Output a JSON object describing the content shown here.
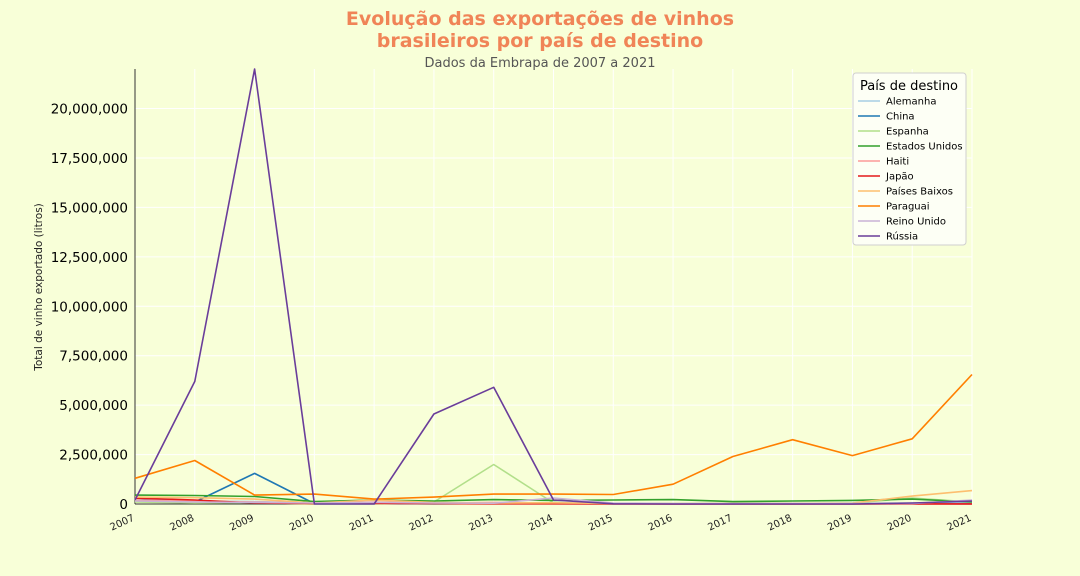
{
  "chart_data": {
    "type": "line",
    "title_lines": [
      "Evolução das exportações de vinhos",
      "brasileiros por país de destino"
    ],
    "subtitle": "Dados da Embrapa de 2007 a 2021",
    "xlabel": "",
    "ylabel": "Total de vinho exportado (litros)",
    "x": [
      "2007",
      "2008",
      "2009",
      "2010",
      "2011",
      "2012",
      "2013",
      "2014",
      "2015",
      "2016",
      "2017",
      "2018",
      "2019",
      "2020",
      "2021"
    ],
    "ylim": [
      0,
      22000000
    ],
    "yticks": [
      0,
      2500000,
      5000000,
      7500000,
      10000000,
      12500000,
      15000000,
      17500000,
      20000000
    ],
    "ytick_labels": [
      "0",
      "2,500,000",
      "5,000,000",
      "7,500,000",
      "10,000,000",
      "12,500,000",
      "15,000,000",
      "17,500,000",
      "20,000,000"
    ],
    "legend": {
      "title": "País de destino",
      "position": "upper right"
    },
    "series": [
      {
        "name": "Alemanha",
        "color": "#a6cee3",
        "values": [
          200000,
          150000,
          120000,
          50000,
          80000,
          60000,
          50000,
          40000,
          30000,
          20000,
          10000,
          20000,
          30000,
          50000,
          60000
        ]
      },
      {
        "name": "China",
        "color": "#1f78b4",
        "values": [
          300000,
          100000,
          1550000,
          20000,
          30000,
          10000,
          20000,
          50000,
          30000,
          10000,
          20000,
          30000,
          10000,
          20000,
          10000
        ]
      },
      {
        "name": "Espanha",
        "color": "#b2df8a",
        "values": [
          100000,
          50000,
          80000,
          0,
          0,
          100000,
          2000000,
          50000,
          20000,
          10000,
          10000,
          5000,
          50000,
          300000,
          100000
        ]
      },
      {
        "name": "Estados Unidos",
        "color": "#33a02c",
        "values": [
          450000,
          430000,
          380000,
          120000,
          200000,
          150000,
          220000,
          180000,
          200000,
          220000,
          120000,
          150000,
          180000,
          250000,
          100000
        ]
      },
      {
        "name": "Haiti",
        "color": "#fb9a99",
        "values": [
          200000,
          150000,
          100000,
          50000,
          100000,
          50000,
          80000,
          20000,
          10000,
          5000,
          5000,
          5000,
          10000,
          5000,
          5000
        ]
      },
      {
        "name": "Japão",
        "color": "#e31a1c",
        "values": [
          300000,
          200000,
          50000,
          20000,
          30000,
          20000,
          10000,
          10000,
          5000,
          5000,
          5000,
          5000,
          5000,
          5000,
          5000
        ]
      },
      {
        "name": "Países Baixos",
        "color": "#fdbf6f",
        "values": [
          350000,
          320000,
          250000,
          50000,
          200000,
          80000,
          50000,
          60000,
          30000,
          20000,
          20000,
          30000,
          50000,
          400000,
          680000
        ]
      },
      {
        "name": "Paraguai",
        "color": "#ff7f00",
        "values": [
          1300000,
          2200000,
          450000,
          500000,
          250000,
          350000,
          500000,
          500000,
          480000,
          1000000,
          2400000,
          3250000,
          2450000,
          3300000,
          6550000
        ]
      },
      {
        "name": "Reino Unido",
        "color": "#cab2d6",
        "values": [
          150000,
          100000,
          80000,
          50000,
          80000,
          50000,
          40000,
          300000,
          50000,
          20000,
          10000,
          20000,
          30000,
          20000,
          200000
        ]
      },
      {
        "name": "Rússia",
        "color": "#6a3d9a",
        "values": [
          200000,
          6200000,
          22000000,
          0,
          0,
          4550000,
          5900000,
          200000,
          10000,
          0,
          0,
          0,
          0,
          50000,
          150000
        ]
      }
    ]
  }
}
